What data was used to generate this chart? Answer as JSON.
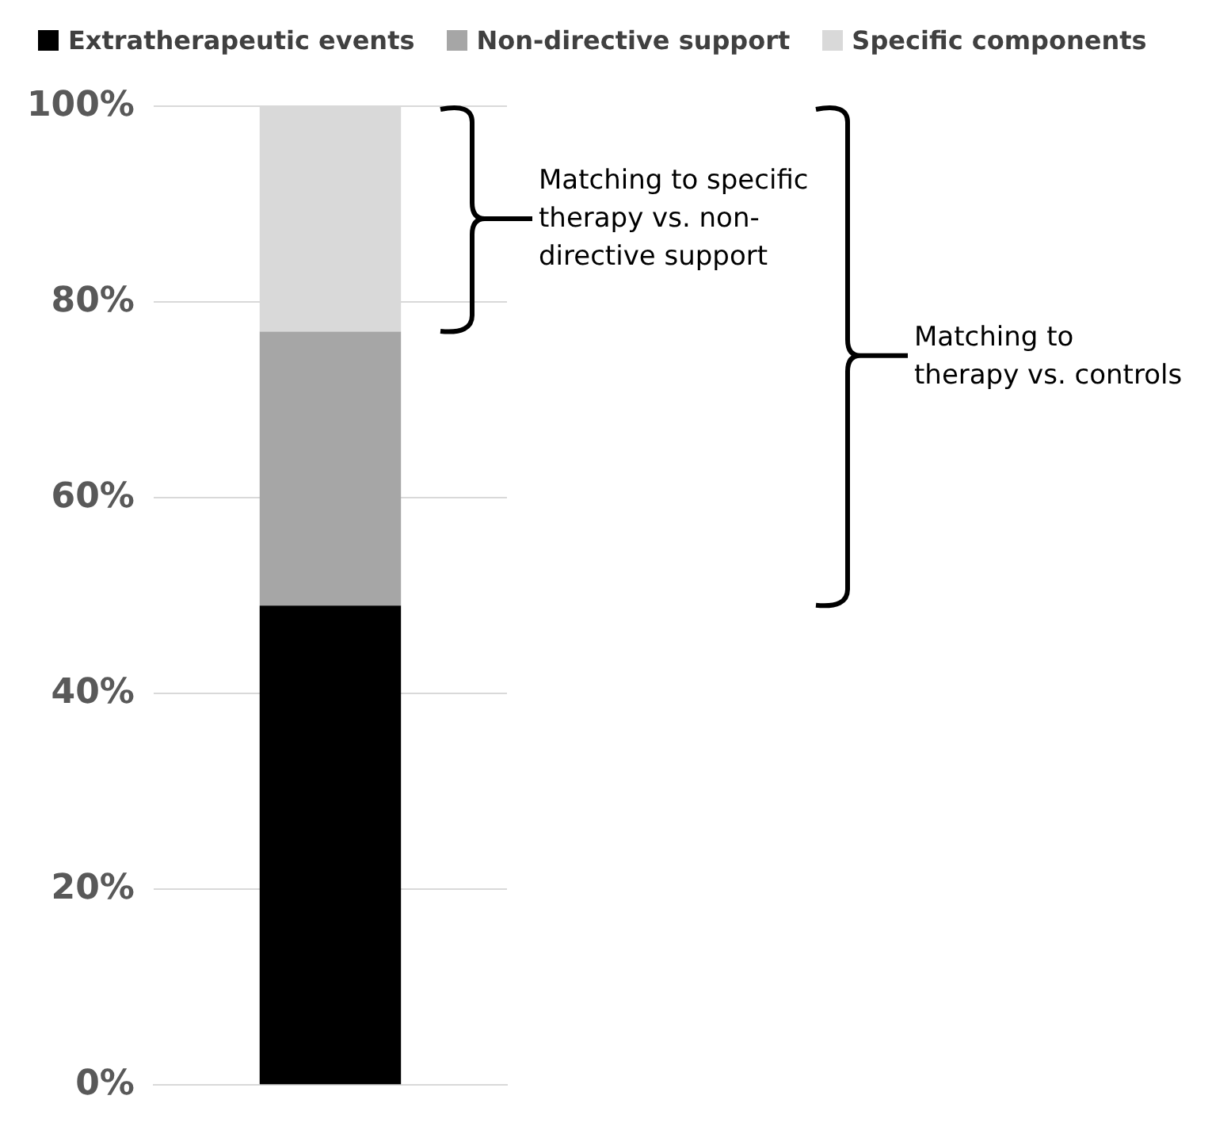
{
  "chart_data": {
    "type": "bar",
    "stacked": true,
    "categories": [
      null
    ],
    "series": [
      {
        "name": "Extratherapeutic events",
        "color": "#000000",
        "values": [
          49
        ]
      },
      {
        "name": "Non-directive support",
        "color": "#a6a6a6",
        "values": [
          28
        ]
      },
      {
        "name": "Specific components",
        "color": "#d9d9d9",
        "values": [
          23
        ]
      }
    ],
    "ylim": [
      0,
      100
    ],
    "yticks": [
      {
        "value": 0,
        "label": "0%"
      },
      {
        "value": 20,
        "label": "20%"
      },
      {
        "value": 40,
        "label": "40%"
      },
      {
        "value": 60,
        "label": "60%"
      },
      {
        "value": 80,
        "label": "80%"
      },
      {
        "value": 100,
        "label": "100%"
      }
    ],
    "grid": "y",
    "legend": "top",
    "annotations": [
      "Matching to specific therapy vs. non-directive support",
      "Matching to therapy vs. controls"
    ]
  }
}
